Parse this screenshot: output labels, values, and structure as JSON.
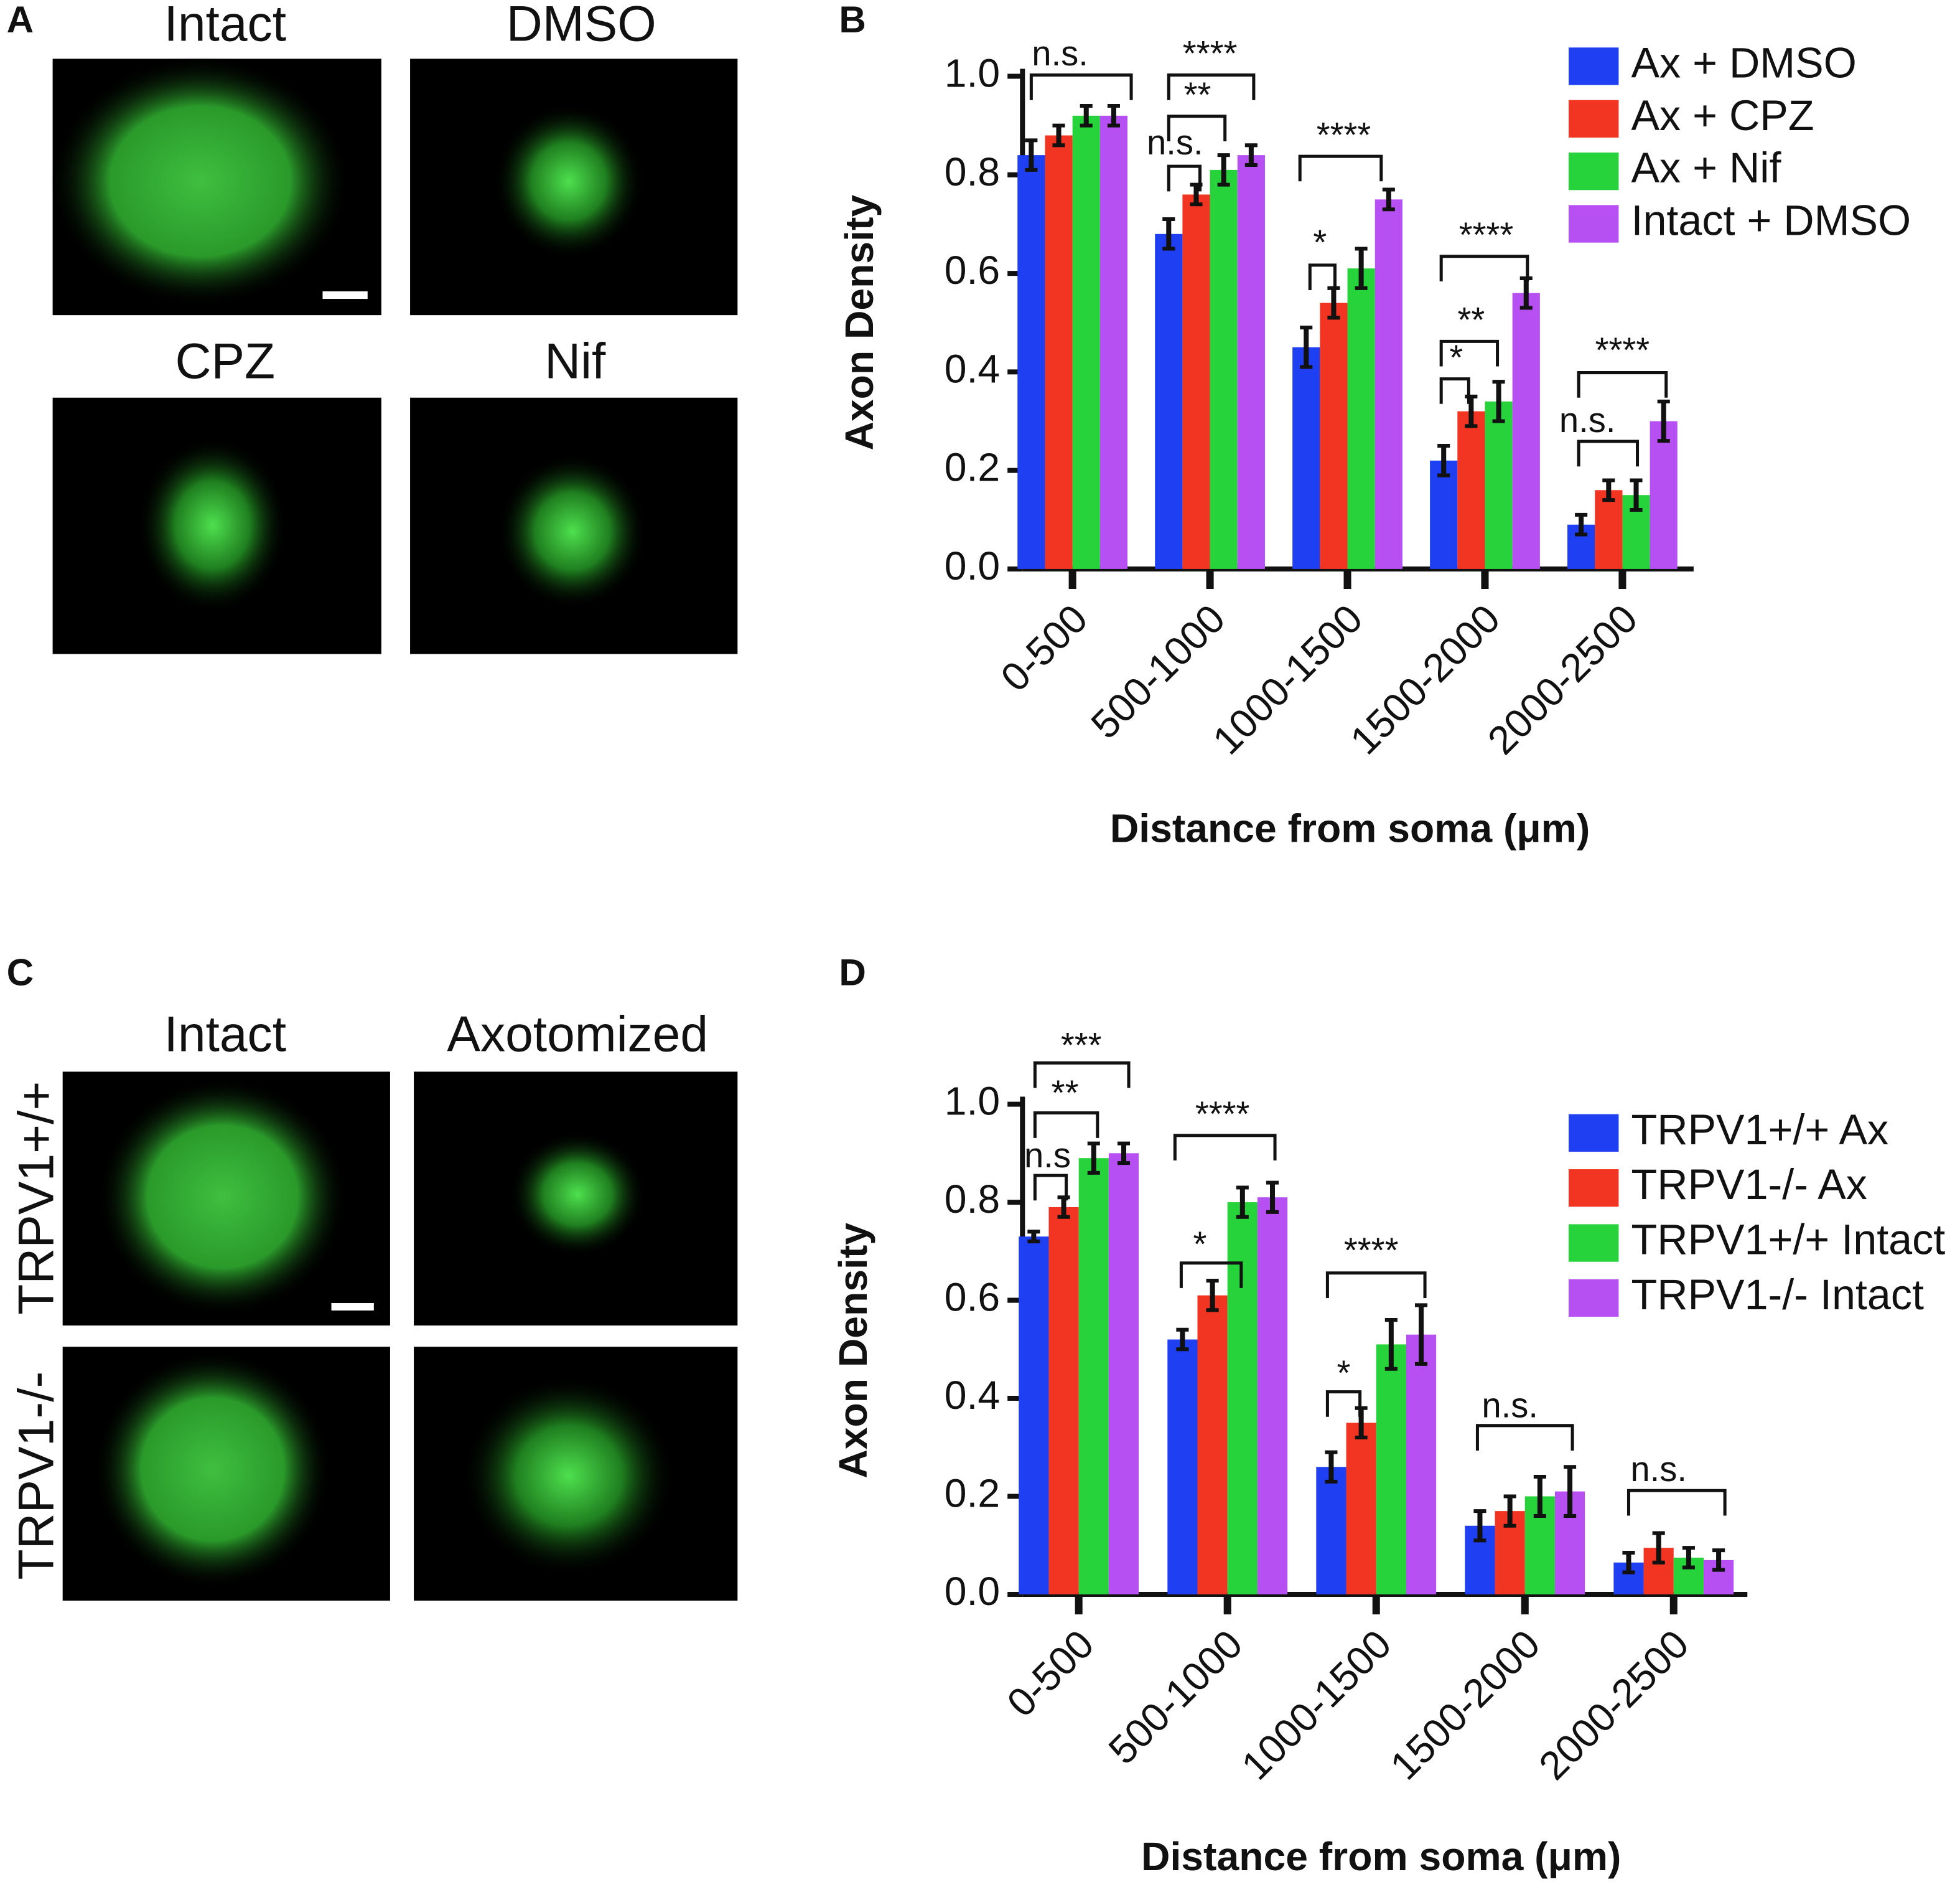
{
  "images": [
    {
      "panel_label": "A",
      "labels": [
        "Intact",
        "DMSO",
        "CPZ",
        "Nif"
      ]
    },
    {
      "panel_label": "C",
      "labels": [
        "Intact",
        "Axotomized"
      ],
      "row_labels": [
        "TRPV1+/+",
        "TRPV1-/-"
      ]
    }
  ],
  "chart_data": [
    {
      "type": "bar",
      "panel_label": "B",
      "x_label": "Distance from soma (μm)",
      "y_label": "Axon Density",
      "categories": [
        "0-500",
        "500-1000",
        "1000-1500",
        "1500-2000",
        "2000-2500"
      ],
      "series": [
        {
          "name": "Ax + DMSO",
          "color": "#1f3ff2",
          "values": [
            0.84,
            0.68,
            0.45,
            0.22,
            0.09
          ],
          "errors": [
            0.03,
            0.03,
            0.04,
            0.03,
            0.02
          ]
        },
        {
          "name": "Ax + CPZ",
          "color": "#f23522",
          "values": [
            0.88,
            0.76,
            0.54,
            0.32,
            0.16
          ],
          "errors": [
            0.02,
            0.02,
            0.03,
            0.03,
            0.02
          ]
        },
        {
          "name": "Ax + Nif",
          "color": "#27d33a",
          "values": [
            0.92,
            0.81,
            0.61,
            0.34,
            0.15
          ],
          "errors": [
            0.02,
            0.03,
            0.04,
            0.04,
            0.03
          ]
        },
        {
          "name": "Intact + DMSO",
          "color": "#b650f2",
          "values": [
            0.92,
            0.84,
            0.75,
            0.56,
            0.3
          ],
          "errors": [
            0.02,
            0.02,
            0.02,
            0.03,
            0.04
          ]
        }
      ],
      "ylim": [
        0,
        1.0
      ],
      "yticks": [
        {
          "value": 0,
          "label": "0.0"
        },
        {
          "value": 0.2,
          "label": "0.2"
        },
        {
          "value": 0.4,
          "label": "0.4"
        },
        {
          "value": 0.6,
          "label": "0.6"
        },
        {
          "value": 0.8,
          "label": "0.8"
        },
        {
          "value": 1.0,
          "label": "1.0"
        }
      ],
      "legend": "top-right",
      "annotations": [
        "n.s.",
        "****",
        "**",
        "n.s.",
        "****",
        "*",
        "****",
        "**",
        "*",
        "****",
        "n.s."
      ]
    },
    {
      "type": "bar",
      "panel_label": "D",
      "x_label": "Distance from soma (μm)",
      "y_label": "Axon Density",
      "categories": [
        "0-500",
        "500-1000",
        "1000-1500",
        "1500-2000",
        "2000-2500"
      ],
      "series": [
        {
          "name": "TRPV1+/+ Ax",
          "color": "#1f3ff2",
          "values": [
            0.73,
            0.52,
            0.26,
            0.14,
            0.065
          ],
          "errors": [
            0.01,
            0.02,
            0.03,
            0.03,
            0.02
          ]
        },
        {
          "name": "TRPV1-/- Ax",
          "color": "#f23522",
          "values": [
            0.79,
            0.61,
            0.35,
            0.17,
            0.095
          ],
          "errors": [
            0.02,
            0.03,
            0.03,
            0.03,
            0.03
          ]
        },
        {
          "name": "TRPV1+/+ Intact",
          "color": "#27d33a",
          "values": [
            0.89,
            0.8,
            0.51,
            0.2,
            0.075
          ],
          "errors": [
            0.03,
            0.03,
            0.05,
            0.04,
            0.02
          ]
        },
        {
          "name": "TRPV1-/- Intact",
          "color": "#b650f2",
          "values": [
            0.9,
            0.81,
            0.53,
            0.21,
            0.07
          ],
          "errors": [
            0.02,
            0.03,
            0.06,
            0.05,
            0.02
          ]
        }
      ],
      "ylim": [
        0,
        1.0
      ],
      "yticks": [
        {
          "value": 0,
          "label": "0.0"
        },
        {
          "value": 0.2,
          "label": "0.2"
        },
        {
          "value": 0.4,
          "label": "0.4"
        },
        {
          "value": 0.6,
          "label": "0.6"
        },
        {
          "value": 0.8,
          "label": "0.8"
        },
        {
          "value": 1.0,
          "label": "1.0"
        }
      ],
      "legend": "top-right",
      "annotations": [
        "***",
        "**",
        "n.s",
        "****",
        "*",
        "****",
        "*",
        "n.s.",
        "n.s."
      ]
    }
  ]
}
